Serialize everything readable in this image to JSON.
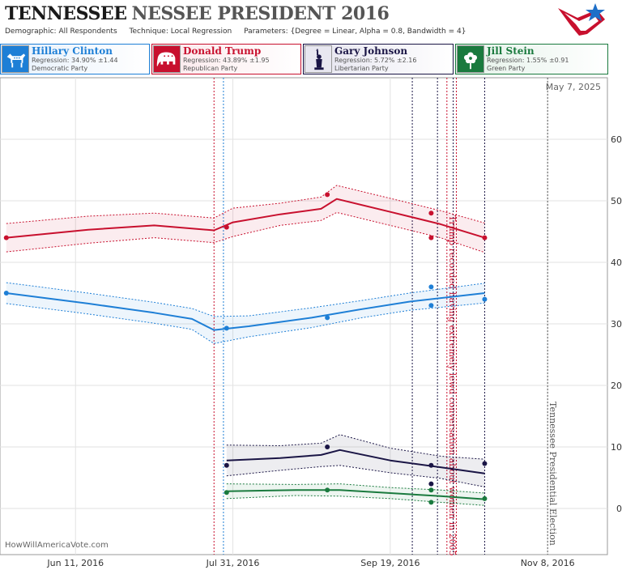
{
  "header": {
    "title_part1": "TENNESSEE",
    "title_part2": "NESSEE PRESIDENT 2016",
    "demographic_label": "Demographic:",
    "demographic_value": "All Respondents",
    "technique_label": "Technique:",
    "technique_value": "Local Regression",
    "parameters_label": "Parameters:",
    "parameters_value": "{Degree = Linear, Alpha = 0.8, Bandwidth = 4}"
  },
  "candidates": [
    {
      "name": "Hillary Clinton",
      "regression": "Regression: 34.90% ±1.44",
      "party": "Democratic Party",
      "color": "#1e7fd6",
      "icon": "donkey-icon"
    },
    {
      "name": "Donald Trump",
      "regression": "Regression: 43.89% ±1.95",
      "party": "Republican Party",
      "color": "#c8102e",
      "icon": "elephant-icon"
    },
    {
      "name": "Gary Johnson",
      "regression": "Regression: 5.72% ±2.16",
      "party": "Libertarian Party",
      "color": "#1a1545",
      "icon": "liberty-icon"
    },
    {
      "name": "Jill Stein",
      "regression": "Regression: 1.55% ±0.91",
      "party": "Green Party",
      "color": "#1a7a3e",
      "icon": "flower-icon"
    }
  ],
  "watermark": "HowWillAmericaVote.com",
  "chart_data": {
    "type": "line",
    "date_label": "May 7, 2025",
    "x_range": [
      "2016-05-18",
      "2016-11-27"
    ],
    "ylim": [
      -7.5,
      70
    ],
    "y_ticks": [
      0,
      10,
      20,
      30,
      40,
      50,
      60
    ],
    "x_ticks": [
      {
        "date": "2016-06-11",
        "label": "Jun 11, 2016"
      },
      {
        "date": "2016-07-31",
        "label": "Jul 31, 2016"
      },
      {
        "date": "2016-09-19",
        "label": "Sep 19, 2016"
      },
      {
        "date": "2016-11-08",
        "label": "Nov 8, 2016"
      }
    ],
    "events": [
      {
        "date": "2016-07-25",
        "color": "#c8102e",
        "label": ""
      },
      {
        "date": "2016-07-28",
        "color": "#1e7fd6",
        "label": ""
      },
      {
        "date": "2016-09-26",
        "color": "#1a1545",
        "label": ""
      },
      {
        "date": "2016-10-04",
        "color": "#1a1545",
        "label": ""
      },
      {
        "date": "2016-10-07",
        "color": "#c8102e",
        "label": "Trump recorded having extremely lewd conversation about women in 2005"
      },
      {
        "date": "2016-10-09",
        "color": "#1a1545",
        "label": ""
      },
      {
        "date": "2016-10-10",
        "color": "#c8102e",
        "label": ""
      },
      {
        "date": "2016-10-19",
        "color": "#1a1545",
        "label": ""
      },
      {
        "date": "2016-11-08",
        "color": "#555555",
        "label": "Tennessee Presidential Election"
      }
    ],
    "series": [
      {
        "name": "Donald Trump",
        "color": "#c8102e",
        "points": [
          [
            "2016-05-20",
            44
          ],
          [
            "2016-07-29",
            45.7
          ],
          [
            "2016-08-30",
            51
          ],
          [
            "2016-10-02",
            48
          ],
          [
            "2016-10-02",
            44
          ],
          [
            "2016-10-19",
            44
          ]
        ],
        "line": [
          [
            "2016-05-20",
            44
          ],
          [
            "2016-06-15",
            45.3
          ],
          [
            "2016-07-06",
            46
          ],
          [
            "2016-07-25",
            45.2
          ],
          [
            "2016-07-31",
            46.5
          ],
          [
            "2016-08-15",
            47.8
          ],
          [
            "2016-08-28",
            48.7
          ],
          [
            "2016-09-02",
            50.3
          ],
          [
            "2016-09-19",
            48.2
          ],
          [
            "2016-10-05",
            46.2
          ],
          [
            "2016-10-19",
            44
          ]
        ],
        "upper": [
          [
            "2016-05-20",
            46.3
          ],
          [
            "2016-06-15",
            47.5
          ],
          [
            "2016-07-06",
            48
          ],
          [
            "2016-07-25",
            47.2
          ],
          [
            "2016-07-31",
            48.8
          ],
          [
            "2016-08-15",
            49.6
          ],
          [
            "2016-08-28",
            50.6
          ],
          [
            "2016-09-02",
            52.5
          ],
          [
            "2016-09-19",
            50.4
          ],
          [
            "2016-10-05",
            48.4
          ],
          [
            "2016-10-19",
            46.4
          ]
        ],
        "lower": [
          [
            "2016-05-20",
            41.7
          ],
          [
            "2016-06-15",
            43.1
          ],
          [
            "2016-07-06",
            44
          ],
          [
            "2016-07-25",
            43.2
          ],
          [
            "2016-07-31",
            44.2
          ],
          [
            "2016-08-15",
            46
          ],
          [
            "2016-08-28",
            46.8
          ],
          [
            "2016-09-02",
            48.1
          ],
          [
            "2016-09-19",
            46
          ],
          [
            "2016-10-05",
            44
          ],
          [
            "2016-10-19",
            41.6
          ]
        ]
      },
      {
        "name": "Hillary Clinton",
        "color": "#1e7fd6",
        "points": [
          [
            "2016-05-20",
            35
          ],
          [
            "2016-07-29",
            29.3
          ],
          [
            "2016-08-30",
            31
          ],
          [
            "2016-10-02",
            36
          ],
          [
            "2016-10-02",
            33
          ],
          [
            "2016-10-19",
            34
          ]
        ],
        "line": [
          [
            "2016-05-20",
            35
          ],
          [
            "2016-06-15",
            33.3
          ],
          [
            "2016-07-06",
            31.8
          ],
          [
            "2016-07-18",
            30.8
          ],
          [
            "2016-07-25",
            29
          ],
          [
            "2016-08-05",
            29.6
          ],
          [
            "2016-08-25",
            31
          ],
          [
            "2016-09-10",
            32.4
          ],
          [
            "2016-09-25",
            33.6
          ],
          [
            "2016-10-19",
            35
          ]
        ],
        "upper": [
          [
            "2016-05-20",
            36.7
          ],
          [
            "2016-06-15",
            35
          ],
          [
            "2016-07-06",
            33.5
          ],
          [
            "2016-07-18",
            32.5
          ],
          [
            "2016-07-25",
            31.2
          ],
          [
            "2016-08-05",
            31.3
          ],
          [
            "2016-08-25",
            32.6
          ],
          [
            "2016-09-10",
            33.8
          ],
          [
            "2016-09-25",
            35
          ],
          [
            "2016-10-19",
            36.6
          ]
        ],
        "lower": [
          [
            "2016-05-20",
            33.3
          ],
          [
            "2016-06-15",
            31.6
          ],
          [
            "2016-07-06",
            30.1
          ],
          [
            "2016-07-18",
            29.1
          ],
          [
            "2016-07-25",
            26.8
          ],
          [
            "2016-08-05",
            27.9
          ],
          [
            "2016-08-25",
            29.4
          ],
          [
            "2016-09-10",
            31
          ],
          [
            "2016-09-25",
            32.2
          ],
          [
            "2016-10-19",
            33.4
          ]
        ]
      },
      {
        "name": "Gary Johnson",
        "color": "#1a1545",
        "points": [
          [
            "2016-07-29",
            7
          ],
          [
            "2016-08-30",
            10
          ],
          [
            "2016-10-02",
            7
          ],
          [
            "2016-10-02",
            4
          ],
          [
            "2016-10-19",
            7.3
          ]
        ],
        "line": [
          [
            "2016-07-29",
            7.8
          ],
          [
            "2016-08-15",
            8.2
          ],
          [
            "2016-08-28",
            8.7
          ],
          [
            "2016-09-03",
            9.5
          ],
          [
            "2016-09-19",
            7.8
          ],
          [
            "2016-10-05",
            6.7
          ],
          [
            "2016-10-19",
            5.7
          ]
        ],
        "upper": [
          [
            "2016-07-29",
            10.3
          ],
          [
            "2016-08-15",
            10.2
          ],
          [
            "2016-08-28",
            10.6
          ],
          [
            "2016-09-03",
            12
          ],
          [
            "2016-09-19",
            9.8
          ],
          [
            "2016-10-05",
            8.5
          ],
          [
            "2016-10-19",
            8
          ]
        ],
        "lower": [
          [
            "2016-07-29",
            5.3
          ],
          [
            "2016-08-15",
            6.2
          ],
          [
            "2016-08-28",
            6.8
          ],
          [
            "2016-09-03",
            7
          ],
          [
            "2016-09-19",
            5.8
          ],
          [
            "2016-10-05",
            4.9
          ],
          [
            "2016-10-19",
            3.5
          ]
        ]
      },
      {
        "name": "Jill Stein",
        "color": "#1a7a3e",
        "points": [
          [
            "2016-07-29",
            2.6
          ],
          [
            "2016-08-30",
            3
          ],
          [
            "2016-10-02",
            3
          ],
          [
            "2016-10-02",
            1
          ],
          [
            "2016-10-19",
            1.6
          ]
        ],
        "line": [
          [
            "2016-07-29",
            2.8
          ],
          [
            "2016-08-20",
            3
          ],
          [
            "2016-09-03",
            3
          ],
          [
            "2016-09-19",
            2.5
          ],
          [
            "2016-10-05",
            2
          ],
          [
            "2016-10-19",
            1.5
          ]
        ],
        "upper": [
          [
            "2016-07-29",
            4
          ],
          [
            "2016-08-20",
            3.9
          ],
          [
            "2016-09-03",
            4
          ],
          [
            "2016-09-19",
            3.4
          ],
          [
            "2016-10-05",
            3
          ],
          [
            "2016-10-19",
            2.5
          ]
        ],
        "lower": [
          [
            "2016-07-29",
            1.6
          ],
          [
            "2016-08-20",
            2.1
          ],
          [
            "2016-09-03",
            2
          ],
          [
            "2016-09-19",
            1.6
          ],
          [
            "2016-10-05",
            1
          ],
          [
            "2016-10-19",
            0.5
          ]
        ]
      }
    ]
  }
}
